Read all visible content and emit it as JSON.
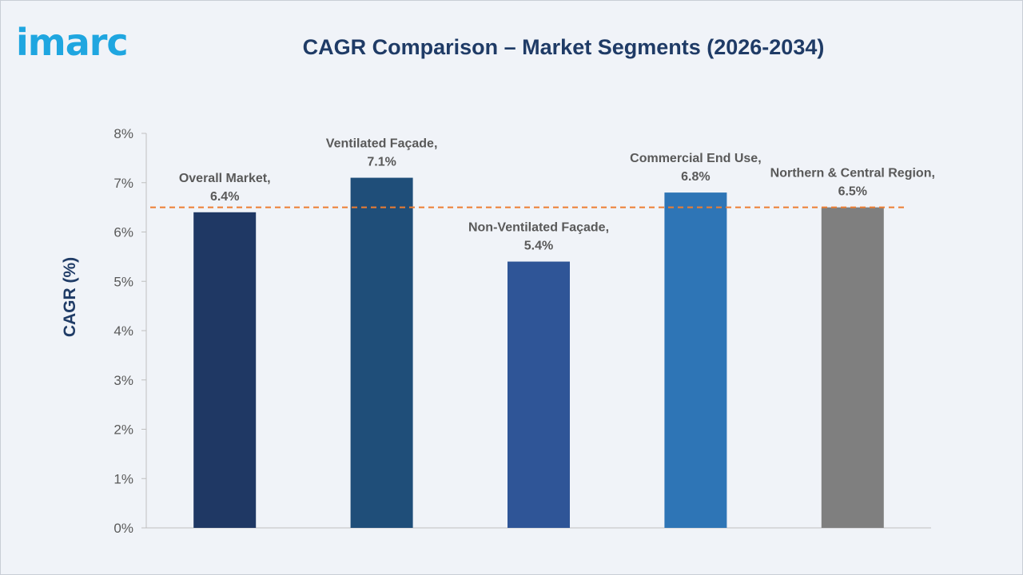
{
  "logo": {
    "text": "imarc",
    "color": "#1fa6e0"
  },
  "chart_data": {
    "type": "bar",
    "title": "CAGR Comparison – Market Segments (2026-2034)",
    "xlabel": "",
    "ylabel": "CAGR (%)",
    "ylim": [
      0,
      8
    ],
    "yticks": [
      "0%",
      "1%",
      "2%",
      "3%",
      "4%",
      "5%",
      "6%",
      "7%",
      "8%"
    ],
    "categories": [
      "Overall Market",
      "Ventilated Façade",
      "Non-Ventilated Façade",
      "Commercial End Use",
      "Northern & Central Region"
    ],
    "values": [
      6.4,
      7.1,
      5.4,
      6.8,
      6.5
    ],
    "data_labels": [
      [
        "Overall Market,",
        "6.4%"
      ],
      [
        "Ventilated Façade,",
        "7.1%"
      ],
      [
        "Non-Ventilated Façade,",
        "5.4%"
      ],
      [
        "Commercial End Use,",
        "6.8%"
      ],
      [
        "Northern & Central Region,",
        "6.5%"
      ]
    ],
    "colors": [
      "#1f3864",
      "#1f4e79",
      "#2f5597",
      "#2e75b6",
      "#7f7f7f"
    ],
    "reference_line": {
      "value": 6.5,
      "style": "dashed",
      "color": "#ed7d31"
    },
    "grid": false,
    "legend": "none"
  }
}
